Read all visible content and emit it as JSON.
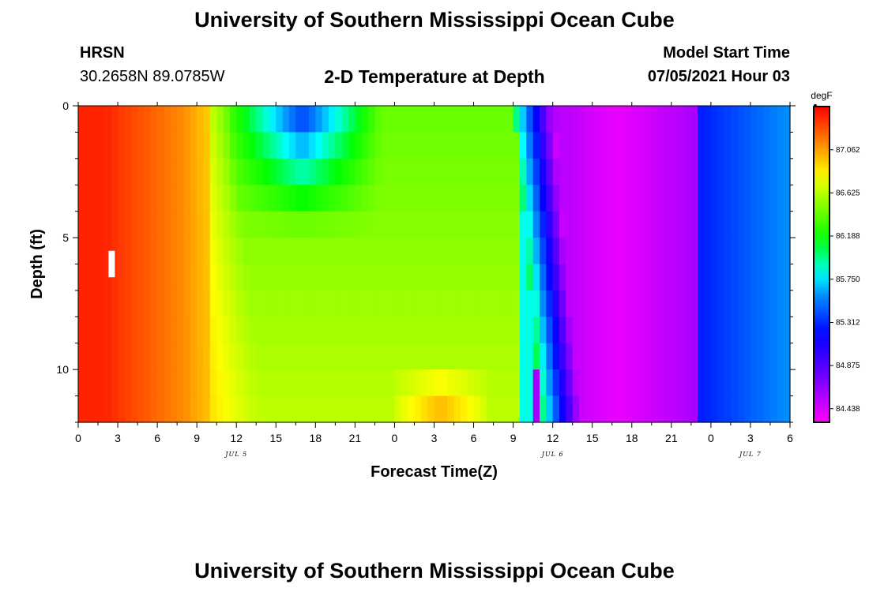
{
  "header": {
    "title": "University of Southern Mississippi Ocean Cube",
    "footer_title": "University of Southern Mississippi Ocean Cube",
    "station": "HRSN",
    "coordinates": "30.2658N  89.0785W",
    "plot_title": "2-D Temperature at Depth",
    "model_start_label": "Model Start Time",
    "model_start_value": "07/05/2021 Hour 03"
  },
  "chart_data": {
    "type": "heatmap",
    "title": "2-D Temperature at Depth",
    "xlabel": "Forecast Time(Z)",
    "ylabel": "Depth (ft)",
    "x_range_hours": [
      0,
      54
    ],
    "y_range_ft": [
      0,
      12
    ],
    "x_ticks": [
      "0",
      "3",
      "6",
      "9",
      "12",
      "15",
      "18",
      "21",
      "0",
      "3",
      "6",
      "9",
      "12",
      "15",
      "18",
      "21",
      "0",
      "3",
      "6"
    ],
    "y_ticks": [
      "0",
      "5",
      "10"
    ],
    "date_labels": [
      {
        "label": "JUL 5",
        "hour": 12
      },
      {
        "label": "JUL 6",
        "hour": 36
      },
      {
        "label": "JUL 7",
        "hour": 51
      }
    ],
    "colorbar": {
      "unit": "degF",
      "min": 84.3,
      "max": 87.5,
      "tick_labels": [
        "87.062",
        "86.625",
        "86.188",
        "85.750",
        "85.312",
        "84.875",
        "84.438"
      ],
      "tick_values": [
        87.062,
        86.625,
        86.188,
        85.75,
        85.312,
        84.875,
        84.438
      ]
    },
    "grid": false
  },
  "colors": {
    "background": "#ffffff",
    "marker": "#ffffff"
  }
}
